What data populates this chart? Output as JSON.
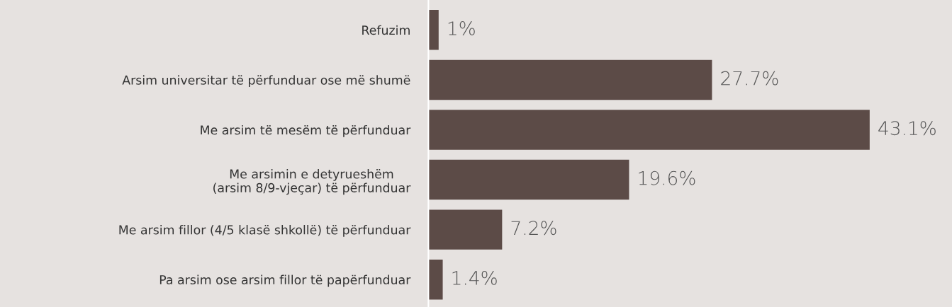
{
  "chart_data": {
    "type": "bar",
    "orientation": "horizontal",
    "categories": [
      "Refuzim",
      "Arsim universitar të përfunduar ose më shumë",
      "Me arsim të mesëm të përfunduar",
      "Me arsimin e detyrueshëm\n(arsim 8/9-vjeçar) të përfunduar",
      "Me arsim fillor (4/5 klasë shkollë) të përfunduar",
      "Pa arsim ose arsim fillor të papërfunduar"
    ],
    "values": [
      1,
      27.7,
      43.1,
      19.6,
      7.2,
      1.4
    ],
    "value_labels": [
      "1%",
      "27.7%",
      "43.1%",
      "19.6%",
      "7.2%",
      "1.4%"
    ],
    "color": "#5c4b47",
    "grid": false,
    "legend": false
  }
}
